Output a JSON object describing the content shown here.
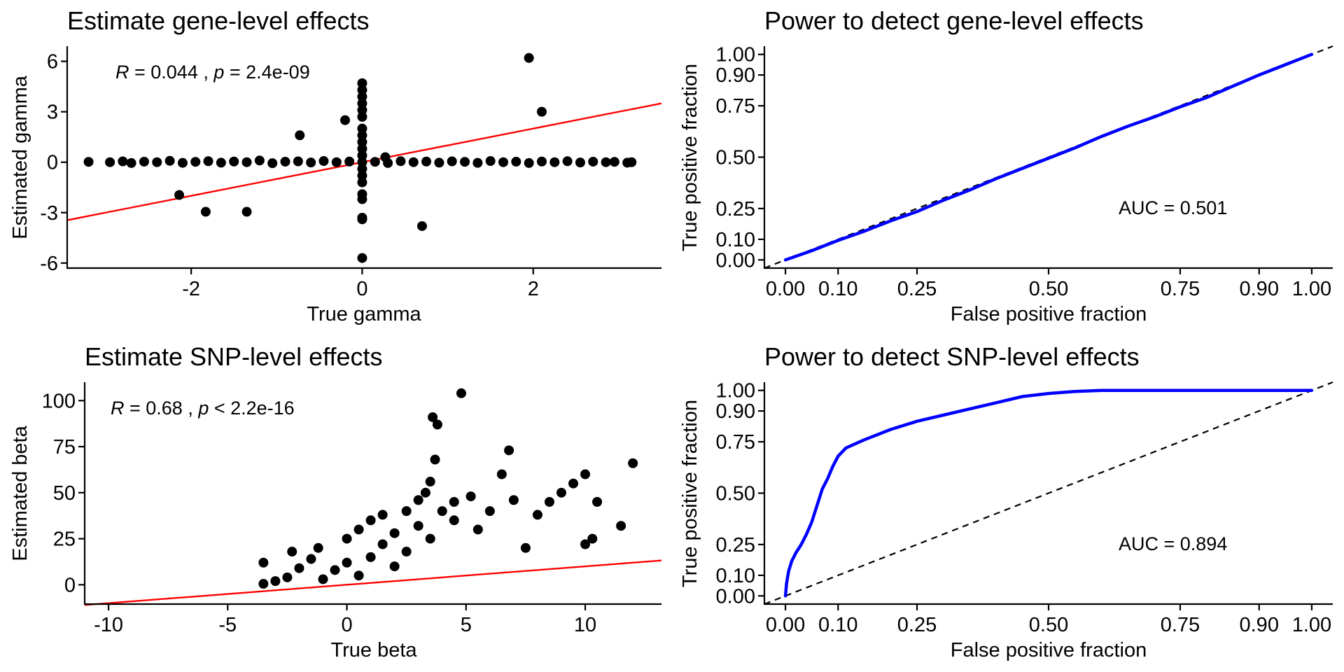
{
  "chart_data": [
    {
      "type": "scatter",
      "title": "Estimate gene-level effects",
      "xlabel": "True gamma",
      "ylabel": "Estimated gamma",
      "xlim": [
        -3.45,
        3.5
      ],
      "ylim": [
        -6.3,
        6.9
      ],
      "xticks": [
        -2,
        0,
        2
      ],
      "xtick_labels": [
        "-2",
        "0",
        "2"
      ],
      "yticks": [
        -6,
        -3,
        0,
        3,
        6
      ],
      "ytick_labels": [
        "-6",
        "-3",
        "0",
        "3",
        "6"
      ],
      "annotation": {
        "r_label": "R",
        "r_text": " = 0.044 , ",
        "p_label": "p",
        "p_text": " = 2.4e-09"
      },
      "fit_line": {
        "color": "#ff0000",
        "intercept": 0.0,
        "slope": 1.0
      },
      "point_color": "#000000",
      "points": [
        [
          -3.2,
          0.02
        ],
        [
          -2.95,
          0.0
        ],
        [
          -2.8,
          0.05
        ],
        [
          -2.7,
          -0.05
        ],
        [
          -2.55,
          0.03
        ],
        [
          -2.4,
          0.0
        ],
        [
          -2.25,
          0.08
        ],
        [
          -2.1,
          -0.04
        ],
        [
          -1.95,
          0.02
        ],
        [
          -1.8,
          0.06
        ],
        [
          -1.65,
          -0.03
        ],
        [
          -1.5,
          0.04
        ],
        [
          -1.35,
          0.0
        ],
        [
          -1.2,
          0.1
        ],
        [
          -1.05,
          -0.06
        ],
        [
          -0.9,
          0.03
        ],
        [
          -0.75,
          0.05
        ],
        [
          -0.6,
          -0.02
        ],
        [
          -0.45,
          0.07
        ],
        [
          -0.3,
          0.0
        ],
        [
          -0.15,
          0.04
        ],
        [
          0.15,
          0.02
        ],
        [
          0.3,
          -0.05
        ],
        [
          0.45,
          0.06
        ],
        [
          0.6,
          0.0
        ],
        [
          0.75,
          0.04
        ],
        [
          0.9,
          -0.03
        ],
        [
          1.05,
          0.05
        ],
        [
          1.2,
          0.02
        ],
        [
          1.35,
          -0.04
        ],
        [
          1.5,
          0.07
        ],
        [
          1.65,
          0.0
        ],
        [
          1.8,
          0.03
        ],
        [
          1.95,
          -0.05
        ],
        [
          2.1,
          0.04
        ],
        [
          2.25,
          0.0
        ],
        [
          2.4,
          0.06
        ],
        [
          2.55,
          -0.02
        ],
        [
          2.7,
          0.03
        ],
        [
          2.85,
          0.0
        ],
        [
          2.95,
          0.02
        ],
        [
          3.1,
          -0.03
        ],
        [
          3.15,
          0.0
        ],
        [
          -2.14,
          -1.95
        ],
        [
          -1.83,
          -2.95
        ],
        [
          -1.35,
          -2.95
        ],
        [
          -0.73,
          1.6
        ],
        [
          -0.2,
          2.5
        ],
        [
          0.27,
          0.3
        ],
        [
          0.7,
          -3.8
        ],
        [
          1.95,
          6.2
        ],
        [
          2.1,
          3.0
        ],
        [
          0.0,
          4.7
        ],
        [
          0.0,
          4.3
        ],
        [
          0.0,
          3.9
        ],
        [
          0.0,
          3.5
        ],
        [
          0.0,
          3.1
        ],
        [
          0.0,
          2.7
        ],
        [
          0.0,
          2.0
        ],
        [
          0.0,
          1.6
        ],
        [
          0.0,
          1.2
        ],
        [
          0.0,
          0.8
        ],
        [
          0.0,
          0.4
        ],
        [
          0.0,
          0.0
        ],
        [
          0.0,
          -0.4
        ],
        [
          0.0,
          -0.8
        ],
        [
          0.0,
          -1.2
        ],
        [
          0.0,
          -1.9
        ],
        [
          0.0,
          -2.2
        ],
        [
          0.0,
          -3.3
        ],
        [
          0.0,
          -3.4
        ],
        [
          0.0,
          -5.7
        ]
      ]
    },
    {
      "type": "line",
      "title": "Power to detect gene-level effects",
      "xlabel": "False positive fraction",
      "ylabel": "True positive fraction",
      "xlim": [
        -0.04,
        1.04
      ],
      "ylim": [
        -0.04,
        1.04
      ],
      "ticks": [
        0.0,
        0.1,
        0.25,
        0.5,
        0.75,
        0.9,
        1.0
      ],
      "tick_labels": [
        "0.00",
        "0.10",
        "0.25",
        "0.50",
        "0.75",
        "0.90",
        "1.00"
      ],
      "annotation": "AUC = 0.501",
      "roc_color": "#0000ff",
      "reference_line": "dashed diagonal",
      "roc_points": [
        [
          0.0,
          0.0
        ],
        [
          0.05,
          0.045
        ],
        [
          0.1,
          0.095
        ],
        [
          0.15,
          0.14
        ],
        [
          0.2,
          0.19
        ],
        [
          0.25,
          0.235
        ],
        [
          0.3,
          0.29
        ],
        [
          0.35,
          0.34
        ],
        [
          0.4,
          0.395
        ],
        [
          0.45,
          0.445
        ],
        [
          0.5,
          0.495
        ],
        [
          0.55,
          0.545
        ],
        [
          0.6,
          0.6
        ],
        [
          0.65,
          0.65
        ],
        [
          0.7,
          0.695
        ],
        [
          0.75,
          0.745
        ],
        [
          0.8,
          0.79
        ],
        [
          0.85,
          0.845
        ],
        [
          0.9,
          0.9
        ],
        [
          0.95,
          0.95
        ],
        [
          1.0,
          1.0
        ]
      ]
    },
    {
      "type": "scatter",
      "title": "Estimate SNP-level effects",
      "xlabel": "True beta",
      "ylabel": "Estimated beta",
      "xlim": [
        -11.0,
        13.2
      ],
      "ylim": [
        -10.5,
        110
      ],
      "xticks": [
        -10,
        -5,
        0,
        5,
        10
      ],
      "xtick_labels": [
        "-10",
        "-5",
        "0",
        "5",
        "10"
      ],
      "yticks": [
        0,
        25,
        50,
        75,
        100
      ],
      "ytick_labels": [
        "0",
        "25",
        "50",
        "75",
        "100"
      ],
      "annotation": {
        "r_label": "R",
        "r_text": " = 0.68 , ",
        "p_label": "p",
        "p_text": " < 2.2e-16"
      },
      "fit_line": {
        "color": "#ff0000",
        "intercept": 0.0,
        "slope": 1.0
      },
      "point_color": "#000000",
      "points": [
        [
          -3.5,
          0.5
        ],
        [
          -3.5,
          12
        ],
        [
          -3.0,
          2
        ],
        [
          -2.5,
          4
        ],
        [
          -2.3,
          18
        ],
        [
          -2.0,
          9
        ],
        [
          -1.5,
          14
        ],
        [
          -1.2,
          20
        ],
        [
          -1.0,
          3
        ],
        [
          -0.5,
          8
        ],
        [
          0.0,
          12
        ],
        [
          0.0,
          25
        ],
        [
          0.5,
          5
        ],
        [
          0.5,
          30
        ],
        [
          1.0,
          15
        ],
        [
          1.0,
          35
        ],
        [
          1.5,
          22
        ],
        [
          1.5,
          38
        ],
        [
          2.0,
          10
        ],
        [
          2.0,
          28
        ],
        [
          2.5,
          18
        ],
        [
          2.5,
          40
        ],
        [
          3.0,
          32
        ],
        [
          3.0,
          46
        ],
        [
          3.3,
          50
        ],
        [
          3.5,
          56
        ],
        [
          3.5,
          25
        ],
        [
          3.6,
          91
        ],
        [
          3.8,
          87
        ],
        [
          3.7,
          68
        ],
        [
          4.0,
          40
        ],
        [
          4.5,
          35
        ],
        [
          4.5,
          45
        ],
        [
          4.8,
          104
        ],
        [
          5.2,
          48
        ],
        [
          5.5,
          30
        ],
        [
          6.0,
          40
        ],
        [
          6.5,
          60
        ],
        [
          6.8,
          73
        ],
        [
          7.0,
          46
        ],
        [
          7.5,
          20
        ],
        [
          8.0,
          38
        ],
        [
          8.5,
          45
        ],
        [
          9.0,
          50
        ],
        [
          9.5,
          55
        ],
        [
          10.0,
          60
        ],
        [
          10.5,
          45
        ],
        [
          10.0,
          22
        ],
        [
          10.3,
          25
        ],
        [
          11.5,
          32
        ],
        [
          12.0,
          66
        ]
      ]
    },
    {
      "type": "line",
      "title": "Power to detect SNP-level effects",
      "xlabel": "False positive fraction",
      "ylabel": "True positive fraction",
      "xlim": [
        -0.04,
        1.04
      ],
      "ylim": [
        -0.04,
        1.04
      ],
      "ticks": [
        0.0,
        0.1,
        0.25,
        0.5,
        0.75,
        0.9,
        1.0
      ],
      "tick_labels": [
        "0.00",
        "0.10",
        "0.25",
        "0.50",
        "0.75",
        "0.90",
        "1.00"
      ],
      "annotation": "AUC = 0.894",
      "roc_color": "#0000ff",
      "reference_line": "dashed diagonal",
      "roc_points": [
        [
          0.0,
          0.0
        ],
        [
          0.002,
          0.06
        ],
        [
          0.006,
          0.12
        ],
        [
          0.012,
          0.17
        ],
        [
          0.02,
          0.21
        ],
        [
          0.03,
          0.25
        ],
        [
          0.04,
          0.3
        ],
        [
          0.05,
          0.36
        ],
        [
          0.06,
          0.44
        ],
        [
          0.07,
          0.52
        ],
        [
          0.08,
          0.57
        ],
        [
          0.09,
          0.63
        ],
        [
          0.1,
          0.68
        ],
        [
          0.115,
          0.72
        ],
        [
          0.15,
          0.76
        ],
        [
          0.2,
          0.81
        ],
        [
          0.25,
          0.85
        ],
        [
          0.3,
          0.88
        ],
        [
          0.35,
          0.91
        ],
        [
          0.4,
          0.94
        ],
        [
          0.45,
          0.97
        ],
        [
          0.5,
          0.985
        ],
        [
          0.55,
          0.995
        ],
        [
          0.6,
          1.0
        ],
        [
          0.8,
          1.0
        ],
        [
          1.0,
          1.0
        ]
      ]
    }
  ]
}
